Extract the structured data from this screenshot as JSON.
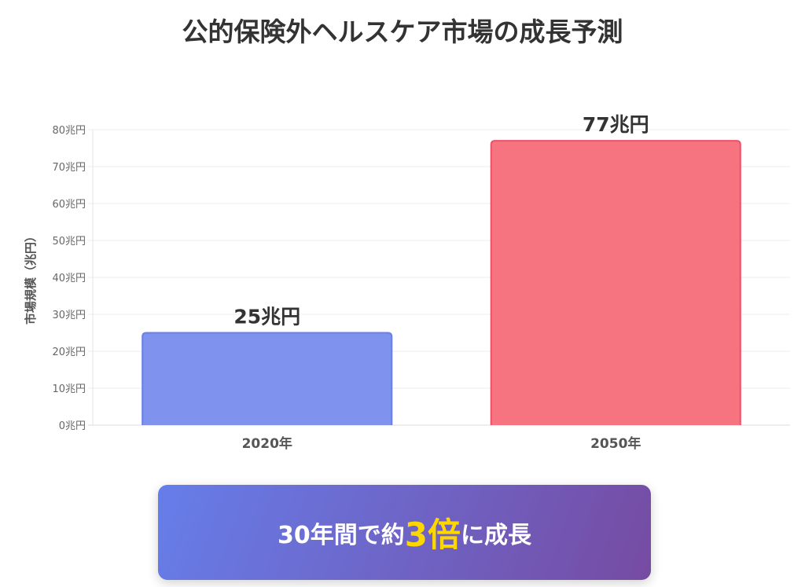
{
  "title": "公的保険外ヘルスケア市場の成長予測",
  "chart_data": {
    "type": "bar",
    "categories": [
      "2020年",
      "2050年"
    ],
    "values": [
      25,
      77
    ],
    "data_labels": [
      "25兆円",
      "77兆円"
    ],
    "colors": [
      "#7f92ee",
      "#f5747f"
    ],
    "border_colors": [
      "#6b7fe8",
      "#f0506a"
    ],
    "ylabel": "市場規模（兆円）",
    "xlabel": "",
    "ylim": [
      0,
      80
    ],
    "yticks": [
      0,
      10,
      20,
      30,
      40,
      50,
      60,
      70,
      80
    ],
    "ytick_suffix": "兆円",
    "grid": true,
    "legend": "none"
  },
  "banner": {
    "prefix": "30年間で約",
    "highlight": "3倍",
    "suffix": "に成長",
    "highlight_color": "#ffd700"
  }
}
